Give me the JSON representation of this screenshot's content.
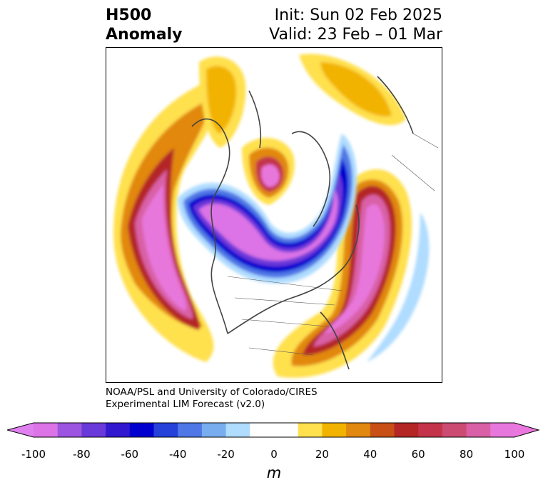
{
  "title": {
    "line1": "H500",
    "line2": "Anomaly"
  },
  "init": {
    "line1": "Init: Sun 02 Feb 2025",
    "line2": "Valid: 23 Feb – 01 Mar"
  },
  "credit": {
    "line1": "NOAA/PSL and University of Colorado/CIRES",
    "line2": "Experimental LIM Forecast (v2.0)"
  },
  "colorbar": {
    "unit": "m",
    "ticks": [
      "-100",
      "-80",
      "-60",
      "-40",
      "-20",
      "0",
      "20",
      "40",
      "60",
      "80",
      "100"
    ],
    "min": -100,
    "max": 100,
    "extend": "both",
    "colors": [
      "#dc73e6",
      "#9b55e0",
      "#6a39d9",
      "#3218cf",
      "#0000cf",
      "#2641d9",
      "#4f77e6",
      "#78aef0",
      "#afdcff",
      "#ffffff",
      "#ffffff",
      "#ffe04d",
      "#f2b300",
      "#e18810",
      "#c85016",
      "#b42626",
      "#c3344a",
      "#cb4b72",
      "#d960a6",
      "#e877dc"
    ],
    "under_color": "#e080f0",
    "over_color": "#ea77dd"
  }
}
